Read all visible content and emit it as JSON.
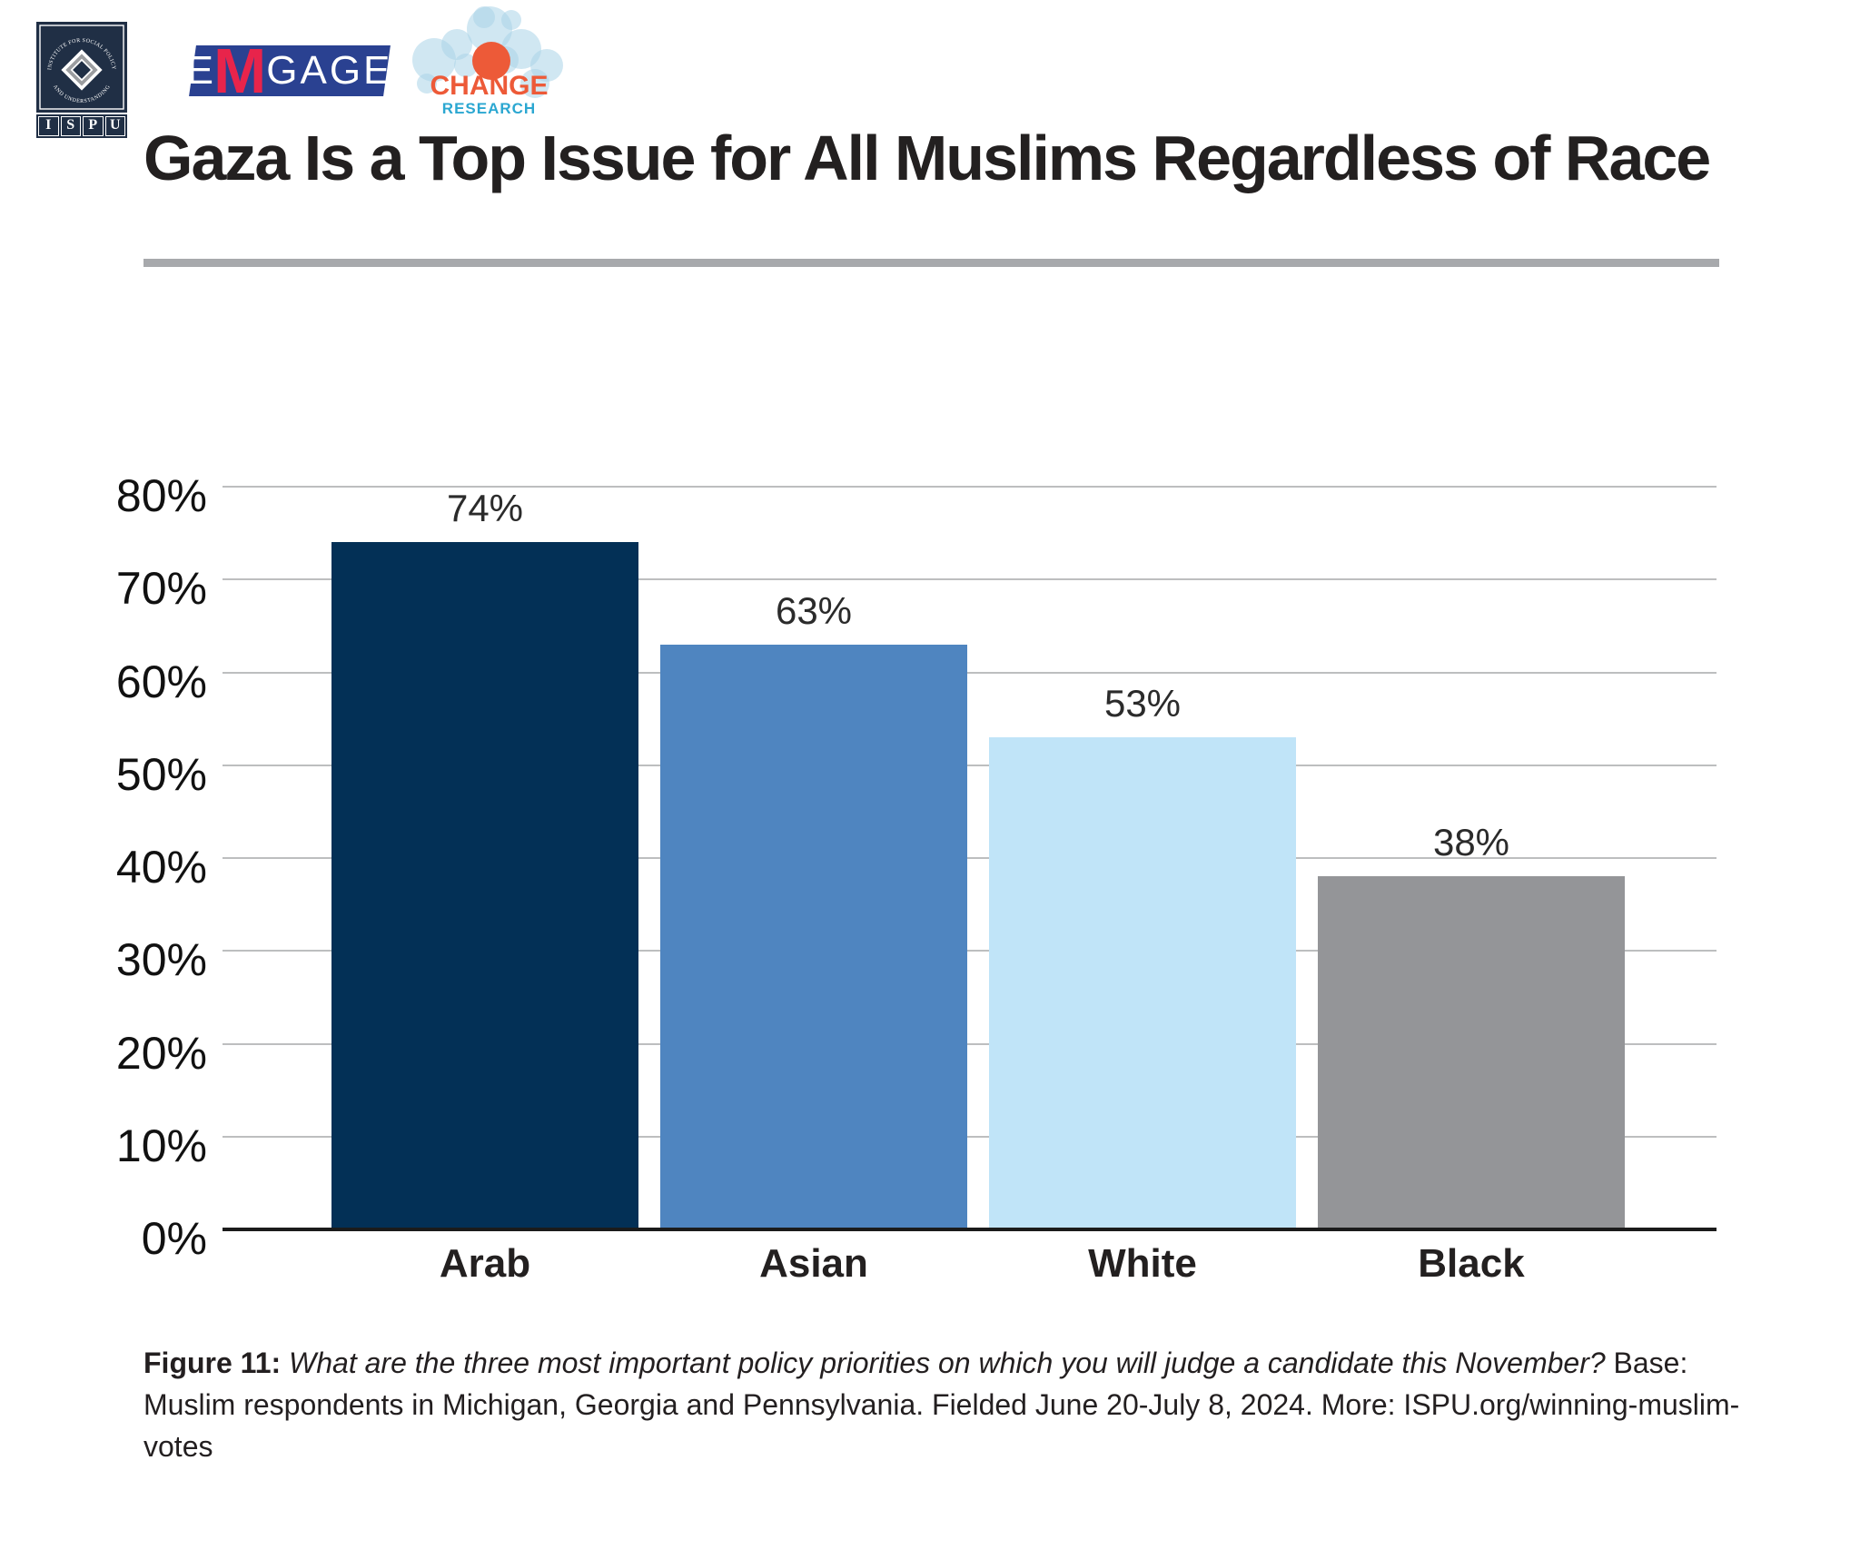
{
  "logos": {
    "ispu": {
      "arc_text_top": "INSTITUTE FOR SOCIAL POLICY",
      "arc_text_bottom": "AND UNDERSTANDING",
      "letters": [
        "I",
        "S",
        "P",
        "U"
      ],
      "navy": "#202f45"
    },
    "emgage": {
      "part1": "E",
      "part2": "M",
      "part3": "GAGE",
      "blue": "#2a4191",
      "red": "#e8244b"
    },
    "change_research": {
      "line1": "CHANGE",
      "line2": "RESEARCH",
      "orange": "#ed5a38",
      "blue": "#2ba7d1",
      "bubble_blue": "#a9d3e8"
    }
  },
  "title": "Gaza Is a Top Issue for All Muslims Regardless of Race",
  "chart_data": {
    "type": "bar",
    "title": "Gaza Is a Top Issue for All Muslims Regardless of Race",
    "categories": [
      "Arab",
      "Asian",
      "White",
      "Black"
    ],
    "values": [
      74,
      63,
      53,
      38
    ],
    "value_labels": [
      "74%",
      "63%",
      "53%",
      "38%"
    ],
    "bar_colors": [
      "#033056",
      "#4f85c0",
      "#c0e4f8",
      "#949598"
    ],
    "xlabel": "",
    "ylabel": "",
    "ylim": [
      0,
      80
    ],
    "ytick_step": 10,
    "ytick_labels": [
      "0%",
      "10%",
      "20%",
      "30%",
      "40%",
      "50%",
      "60%",
      "70%",
      "80%"
    ],
    "grid": true,
    "gridline_color": "#bdbebf",
    "axis_color": "#1b1b1b",
    "legend": "none"
  },
  "caption": {
    "label": "Figure 11:",
    "question": "What are the three most important policy priorities on which you will judge a candidate this November?",
    "rest": "Base: Muslim respondents in Michigan, Georgia and Pennsylvania. Fielded June 20-July 8, 2024. More: ISPU.org/winning-muslim-votes"
  }
}
